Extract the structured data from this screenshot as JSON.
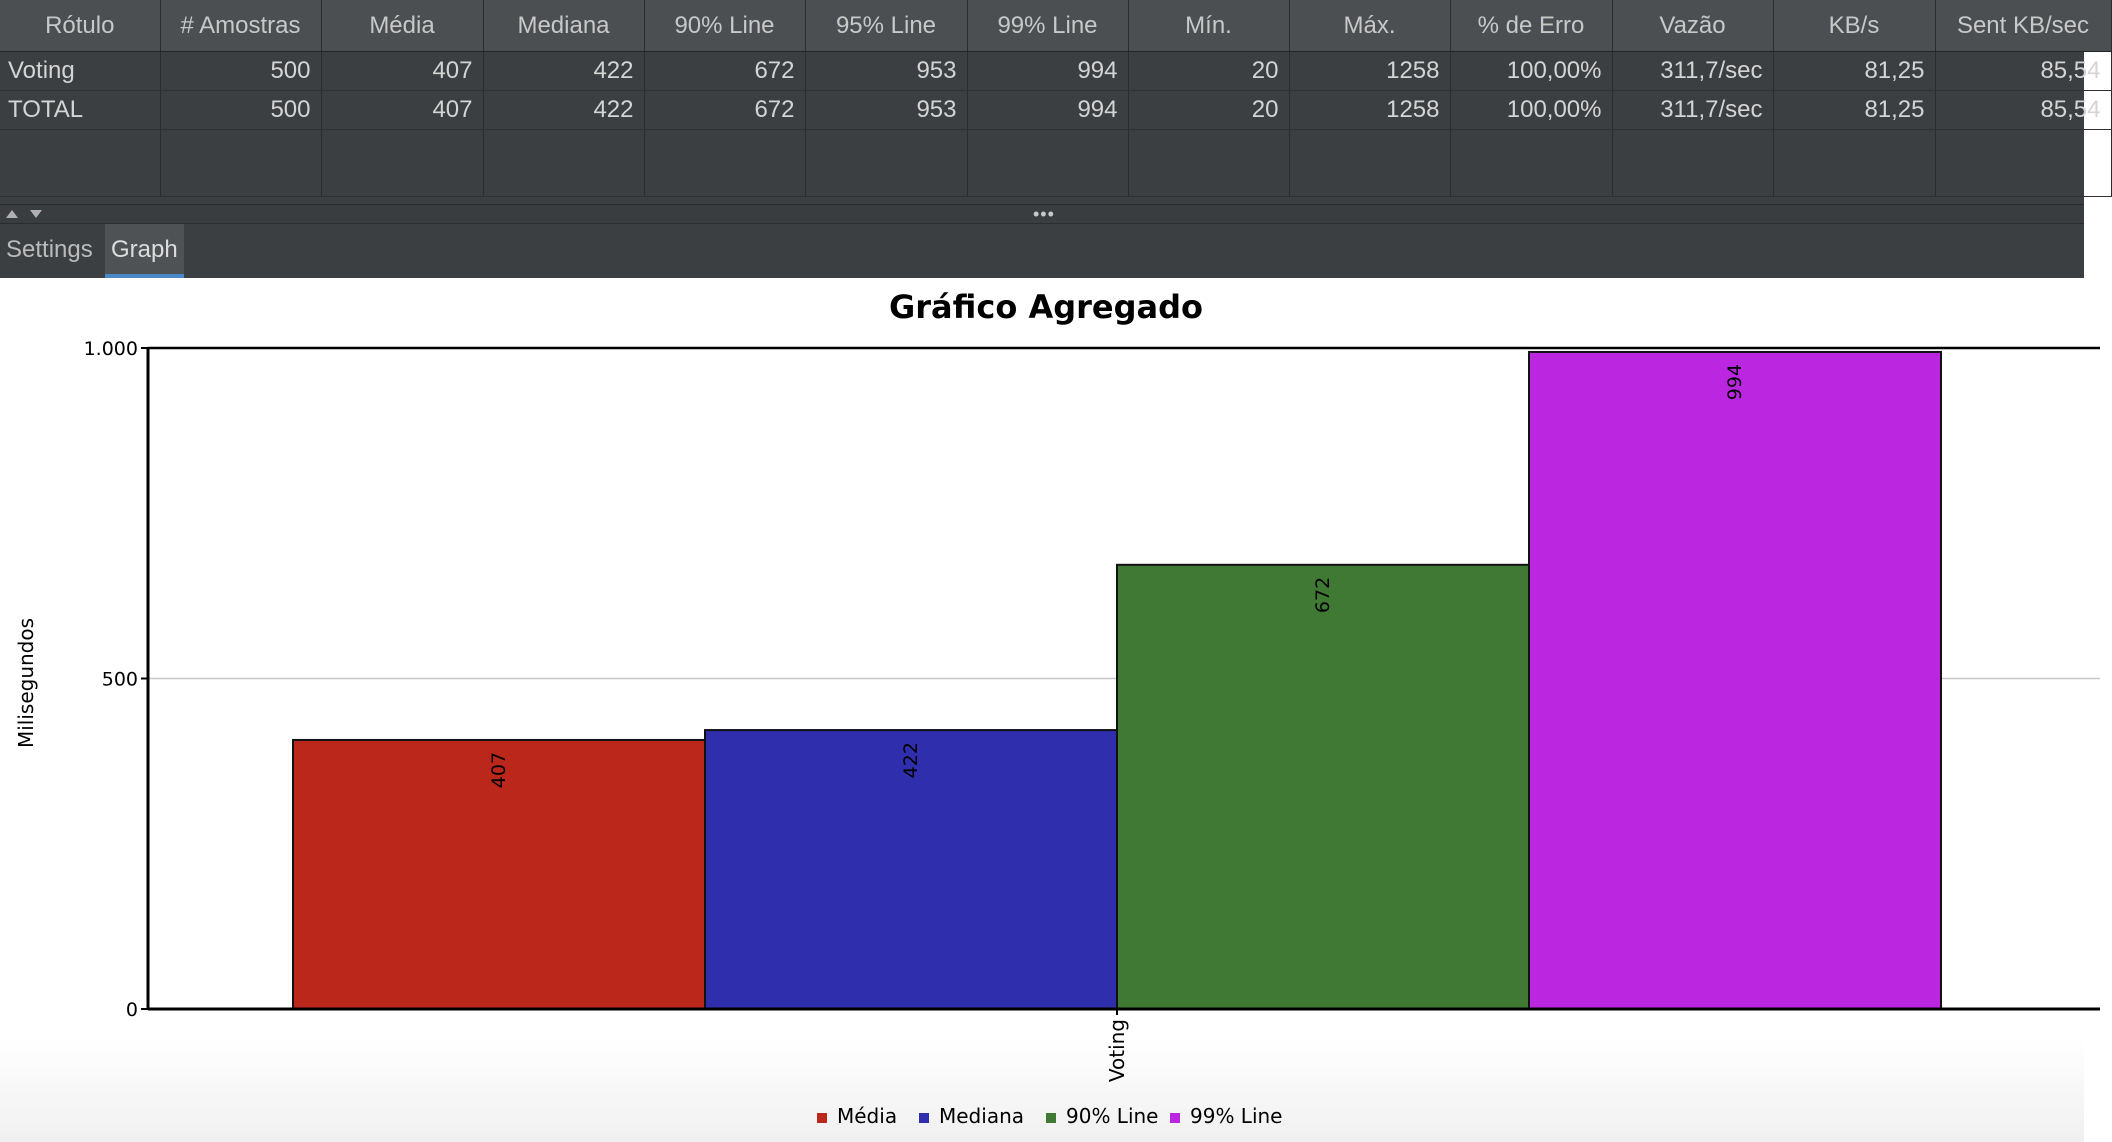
{
  "table": {
    "columns": [
      "Rótulo",
      "# Amostras",
      "Média",
      "Mediana",
      "90% Line",
      "95% Line",
      "99% Line",
      "Mín.",
      "Máx.",
      "% de Erro",
      "Vazão",
      "KB/s",
      "Sent KB/sec"
    ],
    "rows": [
      [
        "Voting",
        "500",
        "407",
        "422",
        "672",
        "953",
        "994",
        "20",
        "1258",
        "100,00%",
        "311,7/sec",
        "81,25",
        "85,54"
      ],
      [
        "TOTAL",
        "500",
        "407",
        "422",
        "672",
        "953",
        "994",
        "20",
        "1258",
        "100,00%",
        "311,7/sec",
        "81,25",
        "85,54"
      ]
    ]
  },
  "splitter": {
    "grip": "•••"
  },
  "tabs": [
    {
      "label": "Settings",
      "active": false
    },
    {
      "label": "Graph",
      "active": true
    }
  ],
  "chart_data": {
    "type": "bar",
    "title": "Gráfico Agregado",
    "xlabel": "",
    "ylabel": "Milisegundos",
    "categories": [
      "Voting"
    ],
    "ylim": [
      0,
      1000
    ],
    "yticks": [
      0,
      500,
      1000
    ],
    "ytick_labels": [
      "0",
      "500",
      "1.000"
    ],
    "grid": true,
    "legend_position": "bottom",
    "series": [
      {
        "name": "Média",
        "values": [
          407
        ],
        "color": "#bb271a"
      },
      {
        "name": "Mediana",
        "values": [
          422
        ],
        "color": "#2f2fae"
      },
      {
        "name": "90% Line",
        "values": [
          672
        ],
        "color": "#407934"
      },
      {
        "name": "99% Line",
        "values": [
          994
        ],
        "color": "#bb27e0"
      }
    ]
  }
}
